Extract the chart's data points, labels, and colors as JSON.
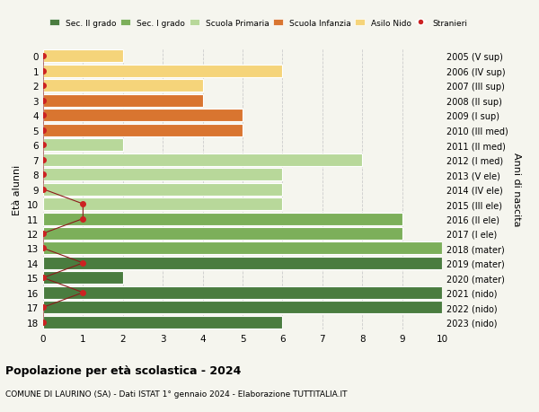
{
  "ages": [
    18,
    17,
    16,
    15,
    14,
    13,
    12,
    11,
    10,
    9,
    8,
    7,
    6,
    5,
    4,
    3,
    2,
    1,
    0
  ],
  "labels_right": [
    "2005 (V sup)",
    "2006 (IV sup)",
    "2007 (III sup)",
    "2008 (II sup)",
    "2009 (I sup)",
    "2010 (III med)",
    "2011 (II med)",
    "2012 (I med)",
    "2013 (V ele)",
    "2014 (IV ele)",
    "2015 (III ele)",
    "2016 (II ele)",
    "2017 (I ele)",
    "2018 (mater)",
    "2019 (mater)",
    "2020 (mater)",
    "2021 (nido)",
    "2022 (nido)",
    "2023 (nido)"
  ],
  "bar_values": [
    6,
    10,
    10,
    2,
    10,
    10,
    9,
    9,
    6,
    6,
    6,
    8,
    2,
    5,
    5,
    4,
    4,
    6,
    2
  ],
  "bar_colors": [
    "#4a7c3f",
    "#4a7c3f",
    "#4a7c3f",
    "#4a7c3f",
    "#4a7c3f",
    "#7caf5a",
    "#7caf5a",
    "#7caf5a",
    "#b8d89a",
    "#b8d89a",
    "#b8d89a",
    "#b8d89a",
    "#b8d89a",
    "#d97530",
    "#d97530",
    "#d97530",
    "#f5d47a",
    "#f5d47a",
    "#f5d47a"
  ],
  "stranieri_x": [
    0,
    0,
    1,
    0,
    1,
    0,
    0,
    1,
    1,
    0,
    0,
    0,
    0,
    0,
    0,
    0,
    0,
    0,
    0
  ],
  "legend_labels": [
    "Sec. II grado",
    "Sec. I grado",
    "Scuola Primaria",
    "Scuola Infanzia",
    "Asilo Nido",
    "Stranieri"
  ],
  "legend_colors": [
    "#4a7c3f",
    "#7caf5a",
    "#b8d89a",
    "#d97530",
    "#f5d47a",
    "#cc2222"
  ],
  "title": "Popolazione per età scolastica - 2024",
  "subtitle": "COMUNE DI LAURINO (SA) - Dati ISTAT 1° gennaio 2024 - Elaborazione TUTTITALIA.IT",
  "ylabel": "Età alunni",
  "ylabel_right": "Anni di nascita",
  "xlim": [
    0,
    10
  ],
  "background_color": "#f5f5ee",
  "grid_color": "#cccccc"
}
